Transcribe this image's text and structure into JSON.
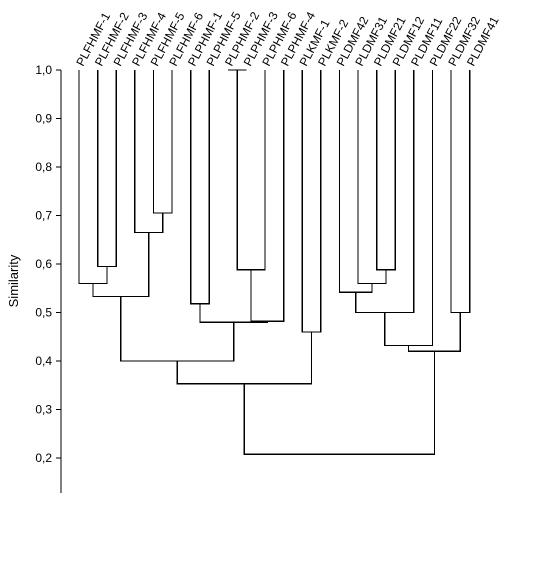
{
  "dendrogram": {
    "ylabel": "Similarity",
    "ylim": [
      0.14,
      1.0
    ],
    "ticks": [
      {
        "value": 1.0,
        "label": "1,0"
      },
      {
        "value": 0.9,
        "label": "0,9"
      },
      {
        "value": 0.8,
        "label": "0,8"
      },
      {
        "value": 0.7,
        "label": "0,7"
      },
      {
        "value": 0.6,
        "label": "0,6"
      },
      {
        "value": 0.5,
        "label": "0,5"
      },
      {
        "value": 0.4,
        "label": "0,4"
      },
      {
        "value": 0.3,
        "label": "0,3"
      },
      {
        "value": 0.2,
        "label": "0,2"
      }
    ],
    "leaves": [
      "PLFHMF-1",
      "PLFHMF-2",
      "PLFHMF-3",
      "PLFHMF-4",
      "PLFHMF-5",
      "PLFHMF-6",
      "PLPHMF-1",
      "PLPHMF-5",
      "PLPHMF-2",
      "PLPHMF-3",
      "PLPHMF-6",
      "PLPHMF-4",
      "PLKMF-1",
      "PLKMF-2",
      "PLDMF42",
      "PLDMF31",
      "PLDMF21",
      "PLDMF12",
      "PLDMF11",
      "PLDMF22",
      "PLDMF32",
      "PLDMF41"
    ],
    "merges": [
      {
        "id": "m1",
        "left": "PLFHMF-2",
        "right": "PLFHMF-3",
        "similarity": 0.595
      },
      {
        "id": "m2",
        "left": "PLFHMF-5",
        "right": "PLFHMF-6",
        "similarity": 0.705
      },
      {
        "id": "m3",
        "left": "PLFHMF-4",
        "right": "m2",
        "similarity": 0.665
      },
      {
        "id": "m4",
        "left": "PLFHMF-1",
        "right": "m1",
        "similarity": 0.56
      },
      {
        "id": "m5",
        "left": "m4",
        "right": "m3",
        "similarity": 0.533
      },
      {
        "id": "m6",
        "left": "PLPHMF-2",
        "right": "PLPHMF-3",
        "similarity": 1.0
      },
      {
        "id": "m7",
        "left": "m6",
        "right": "PLPHMF-6",
        "similarity": 0.588
      },
      {
        "id": "m8",
        "left": "PLPHMF-1",
        "right": "PLPHMF-5",
        "similarity": 0.518
      },
      {
        "id": "m9",
        "left": "m7",
        "right": "PLPHMF-4",
        "similarity": 0.482
      },
      {
        "id": "m10",
        "left": "m8",
        "right": "m9",
        "similarity": 0.48
      },
      {
        "id": "m11",
        "left": "m5",
        "right": "m10",
        "similarity": 0.4
      },
      {
        "id": "m12",
        "left": "PLKMF-1",
        "right": "PLKMF-2",
        "similarity": 0.46
      },
      {
        "id": "m13",
        "left": "m11",
        "right": "m12",
        "similarity": 0.353
      },
      {
        "id": "m14",
        "left": "PLDMF21",
        "right": "PLDMF12",
        "similarity": 0.588
      },
      {
        "id": "m15",
        "left": "PLDMF31",
        "right": "m14",
        "similarity": 0.56
      },
      {
        "id": "m16",
        "left": "PLDMF42",
        "right": "m15",
        "similarity": 0.542
      },
      {
        "id": "m17",
        "left": "m16",
        "right": "PLDMF11",
        "similarity": 0.5
      },
      {
        "id": "m18",
        "left": "PLDMF32",
        "right": "PLDMF41",
        "similarity": 0.5
      },
      {
        "id": "m19",
        "left": "m17",
        "right": "PLDMF22",
        "similarity": 0.432
      },
      {
        "id": "m20",
        "left": "m19",
        "right": "m18",
        "similarity": 0.42
      },
      {
        "id": "m21",
        "left": "m13",
        "right": "m20",
        "similarity": 0.208
      }
    ]
  }
}
